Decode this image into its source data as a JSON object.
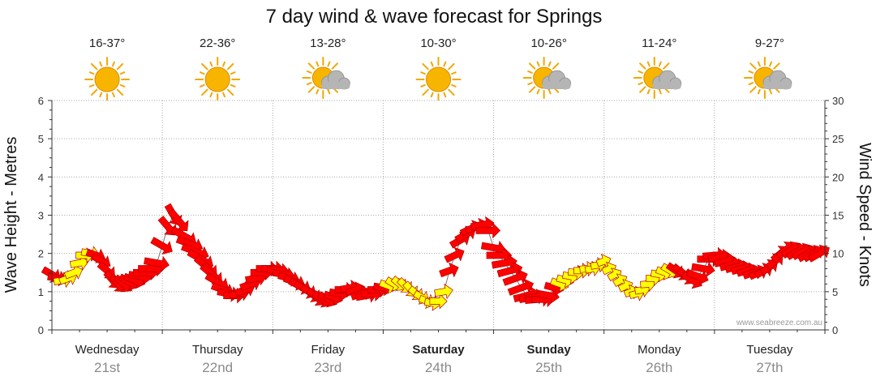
{
  "chart_data": {
    "type": "scatter",
    "title": "7 day wind & wave forecast for Springs",
    "ylabel_left": "Wave Height - Metres",
    "ylabel_right": "Wind Speed - Knots",
    "ylim_left": [
      0,
      6
    ],
    "ylim_right": [
      0,
      30
    ],
    "yticks_left": [
      "0",
      "1",
      "2",
      "3",
      "4",
      "5",
      "6"
    ],
    "yticks_right": [
      "0",
      "5",
      "10",
      "15",
      "20",
      "25",
      "30"
    ],
    "grid": true,
    "days": [
      {
        "name": "Wednesday",
        "date": "21st",
        "temp": "16-37°",
        "icon": "sun-icon",
        "bold": false
      },
      {
        "name": "Thursday",
        "date": "22nd",
        "temp": "22-36°",
        "icon": "sun-icon",
        "bold": false
      },
      {
        "name": "Friday",
        "date": "23rd",
        "temp": "13-28°",
        "icon": "sun-cloud-icon",
        "bold": false
      },
      {
        "name": "Saturday",
        "date": "24th",
        "temp": "10-30°",
        "icon": "sun-icon",
        "bold": true
      },
      {
        "name": "Sunday",
        "date": "25th",
        "temp": "10-26°",
        "icon": "sun-cloud-icon",
        "bold": true
      },
      {
        "name": "Monday",
        "date": "26th",
        "temp": "11-24°",
        "icon": "sun-cloud-icon",
        "bold": false
      },
      {
        "name": "Tuesday",
        "date": "27th",
        "temp": "9-27°",
        "icon": "sun-cloud-icon",
        "bold": false
      }
    ],
    "series": [
      {
        "x": [
          0.0,
          0.05,
          0.1,
          0.15,
          0.2,
          0.25,
          0.3,
          0.35,
          0.4,
          0.45,
          0.5,
          0.55,
          0.6,
          0.65,
          0.7,
          0.75,
          0.8,
          0.85,
          0.9,
          0.95,
          1.0,
          1.05,
          1.1,
          1.15,
          1.2,
          1.25,
          1.3,
          1.35,
          1.4,
          1.45,
          1.5,
          1.55,
          1.6,
          1.65,
          1.7,
          1.75,
          1.8,
          1.85,
          1.9,
          1.95,
          2.0,
          2.05,
          2.1,
          2.15,
          2.2,
          2.25,
          2.3,
          2.35,
          2.4,
          2.45,
          2.5,
          2.55,
          2.6,
          2.65,
          2.7,
          2.75,
          2.8,
          2.85,
          2.9,
          2.95,
          3.0,
          3.05,
          3.1,
          3.15,
          3.2,
          3.25,
          3.3,
          3.35,
          3.4,
          3.45,
          3.5,
          3.55,
          3.6,
          3.65,
          3.7,
          3.75,
          3.8,
          3.85,
          3.9,
          3.95,
          4.0,
          4.05,
          4.1,
          4.15,
          4.2,
          4.25,
          4.3,
          4.35,
          4.4,
          4.45,
          4.5,
          4.55,
          4.6,
          4.65,
          4.7,
          4.75,
          4.8,
          4.85,
          4.9,
          4.95,
          5.0,
          5.05,
          5.1,
          5.15,
          5.2,
          5.25,
          5.3,
          5.35,
          5.4,
          5.45,
          5.5,
          5.55,
          5.6,
          5.65,
          5.7,
          5.75,
          5.8,
          5.85,
          5.9,
          5.95,
          6.0,
          6.05,
          6.1,
          6.15,
          6.2,
          6.25,
          6.3,
          6.35,
          6.4,
          6.45,
          6.5,
          6.55,
          6.6,
          6.65,
          6.7,
          6.75,
          6.8,
          6.85,
          6.9,
          6.95
        ],
        "wave_height_m": [
          1.45,
          1.35,
          1.3,
          1.35,
          1.5,
          1.75,
          1.95,
          2.0,
          1.95,
          1.8,
          1.55,
          1.3,
          1.2,
          1.2,
          1.25,
          1.3,
          1.4,
          1.5,
          1.6,
          1.75,
          2.2,
          2.7,
          3.0,
          2.85,
          2.45,
          2.25,
          2.05,
          1.85,
          1.65,
          1.45,
          1.25,
          1.05,
          0.95,
          0.9,
          0.95,
          1.05,
          1.2,
          1.35,
          1.5,
          1.6,
          1.6,
          1.55,
          1.45,
          1.35,
          1.25,
          1.15,
          1.05,
          0.95,
          0.85,
          0.8,
          0.8,
          0.85,
          0.95,
          1.05,
          1.1,
          1.05,
          0.95,
          0.9,
          0.95,
          1.05,
          1.1,
          1.15,
          1.2,
          1.2,
          1.15,
          1.05,
          0.95,
          0.85,
          0.75,
          0.7,
          0.75,
          1.0,
          1.55,
          1.95,
          2.35,
          2.5,
          2.65,
          2.7,
          2.75,
          2.6,
          2.15,
          1.95,
          1.75,
          1.55,
          1.35,
          1.1,
          0.9,
          0.85,
          0.8,
          0.8,
          0.9,
          1.1,
          1.2,
          1.3,
          1.4,
          1.5,
          1.55,
          1.6,
          1.6,
          1.7,
          1.8,
          1.6,
          1.45,
          1.3,
          1.15,
          1.0,
          0.95,
          1.05,
          1.2,
          1.35,
          1.45,
          1.5,
          1.55,
          1.55,
          1.5,
          1.4,
          1.3,
          1.4,
          1.6,
          1.85,
          1.95,
          1.9,
          1.8,
          1.7,
          1.65,
          1.6,
          1.55,
          1.5,
          1.5,
          1.55,
          1.65,
          1.8,
          2.0,
          2.1,
          2.1,
          2.05,
          2.05,
          2.0,
          2.0,
          2.0
        ],
        "wind_speed_kn": [
          9,
          8,
          7,
          7,
          7,
          7,
          7,
          7,
          8,
          9,
          9,
          9,
          9,
          10,
          10,
          11,
          12,
          14,
          15,
          14,
          12,
          11,
          12,
          15,
          16,
          16,
          17,
          17,
          16,
          15,
          14,
          12,
          11,
          10,
          9,
          9,
          10,
          10,
          11,
          11,
          11,
          11,
          11,
          11,
          11,
          12,
          13,
          12,
          11,
          10,
          9,
          8,
          8,
          8,
          8,
          8,
          9,
          10,
          10,
          9,
          8,
          7,
          6,
          6,
          6,
          6,
          5,
          5,
          5,
          5,
          6,
          7,
          8,
          9,
          10,
          11,
          11,
          12,
          12,
          13,
          13,
          14,
          14,
          14,
          14,
          15,
          15,
          15,
          14,
          12,
          10,
          8,
          7,
          6,
          5,
          5,
          5,
          4,
          4,
          4,
          3,
          3,
          3,
          3,
          3,
          3,
          4,
          4,
          4,
          4,
          5,
          6,
          7,
          8,
          9,
          10,
          11,
          11,
          12,
          12,
          12,
          12,
          11,
          11,
          11,
          10,
          10,
          9,
          8,
          8,
          8,
          9,
          9,
          10,
          10,
          11,
          11,
          11,
          11,
          12
        ],
        "wind_direction_deg": [
          300,
          280,
          260,
          250,
          250,
          260,
          270,
          280,
          290,
          300,
          310,
          320,
          320,
          310,
          300,
          290,
          280,
          270,
          270,
          280,
          300,
          320,
          330,
          320,
          300,
          290,
          290,
          300,
          310,
          310,
          300,
          290,
          280,
          270,
          260,
          250,
          250,
          260,
          270,
          270,
          270,
          275,
          280,
          285,
          290,
          295,
          300,
          305,
          310,
          305,
          300,
          290,
          280,
          270,
          260,
          250,
          250,
          260,
          270,
          270,
          280,
          290,
          300,
          310,
          315,
          320,
          310,
          300,
          290,
          280,
          270,
          260,
          250,
          245,
          240,
          240,
          245,
          250,
          260,
          270,
          280,
          270,
          260,
          255,
          250,
          250,
          255,
          260,
          265,
          270,
          280,
          285,
          290,
          285,
          280,
          275,
          270,
          265,
          260,
          260,
          250,
          245,
          240,
          240,
          245,
          250,
          255,
          260,
          265,
          270,
          280,
          290,
          300,
          305,
          310,
          310,
          300,
          290,
          280,
          270,
          265,
          260,
          255,
          255,
          255,
          255,
          255,
          250,
          245,
          240,
          235,
          230,
          230,
          230,
          235,
          240,
          240,
          240,
          240,
          240
        ]
      }
    ],
    "arrow_color_scale": [
      {
        "max_kn": 7,
        "color": "#ffff00"
      },
      {
        "max_kn": 30,
        "color": "#ff0000"
      }
    ],
    "credit": "www.seabreeze.com.au"
  },
  "colors": {
    "plot_bg": "#ffffff",
    "grid": "#aaaaaa",
    "axis": "#333333",
    "arrow_red": "#ff0000",
    "arrow_yellow": "#ffff00",
    "sun": "#f7b500",
    "cloud": "#b5b5b5"
  }
}
